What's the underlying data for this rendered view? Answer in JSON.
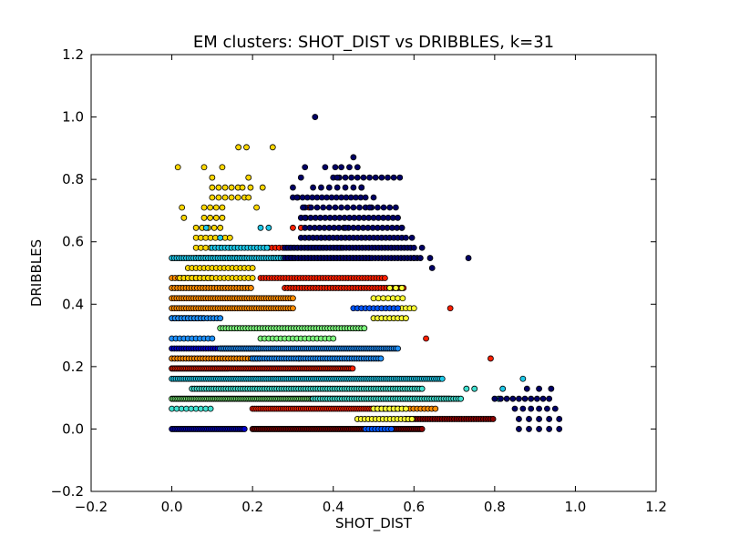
{
  "chart_data": {
    "type": "scatter",
    "title": "EM clusters: SHOT_DIST vs DRIBBLES, k=31",
    "xlabel": "SHOT_DIST",
    "ylabel": "DRIBBLES",
    "xlim": [
      -0.2,
      1.2
    ],
    "ylim": [
      -0.2,
      1.2
    ],
    "xticks": [
      "−0.2",
      "0.0",
      "0.2",
      "0.4",
      "0.6",
      "0.8",
      "1.0",
      "1.2"
    ],
    "yticks": [
      "−0.2",
      "0.0",
      "0.2",
      "0.4",
      "0.6",
      "0.8",
      "1.0",
      "1.2"
    ],
    "grid": false,
    "legend": "none",
    "marker_edge_color": "#000000",
    "background": "#ffffff",
    "dribble_levels": [
      0.0,
      0.032,
      0.065,
      0.097,
      0.129,
      0.161,
      0.194,
      0.226,
      0.258,
      0.29,
      0.323,
      0.355,
      0.387,
      0.419,
      0.452,
      0.484,
      0.516,
      0.548,
      0.581,
      0.613,
      0.645,
      0.677,
      0.71,
      0.742,
      0.774,
      0.806,
      0.839,
      0.871,
      0.903,
      1.0
    ],
    "series": [
      {
        "color": "#0000cd",
        "ranges": [
          [
            0.0,
            0.0,
            0.18,
            0.004
          ],
          [
            0.355,
            0.0,
            0.08,
            0.006
          ],
          [
            0.258,
            0.0,
            0.22,
            0.006
          ],
          [
            0.194,
            0.0,
            0.14,
            0.006
          ]
        ]
      },
      {
        "color": "#8b0000",
        "ranges": [
          [
            0.0,
            0.2,
            0.62,
            0.004
          ],
          [
            0.032,
            0.58,
            0.8,
            0.006
          ]
        ]
      },
      {
        "color": "#ff2000",
        "ranges": [
          [
            0.194,
            0.0,
            0.45,
            0.004
          ],
          [
            0.065,
            0.2,
            0.56,
            0.005
          ],
          [
            0.452,
            0.28,
            0.58,
            0.007
          ],
          [
            0.484,
            0.22,
            0.53,
            0.007
          ],
          [
            0.548,
            0.25,
            0.49,
            0.008
          ],
          [
            0.581,
            0.23,
            0.42,
            0.009
          ],
          [
            0.613,
            0.35,
            0.41,
            0.02
          ],
          [
            0.645,
            0.3,
            0.33,
            0.02
          ]
        ],
        "points": [
          [
            0.34,
            0.71
          ],
          [
            0.315,
            0.226
          ],
          [
            0.69,
            0.39
          ],
          [
            0.79,
            0.226
          ],
          [
            0.63,
            0.29
          ]
        ]
      },
      {
        "color": "#ff8c00",
        "ranges": [
          [
            0.387,
            0.0,
            0.3,
            0.006
          ],
          [
            0.419,
            0.0,
            0.3,
            0.006
          ],
          [
            0.452,
            0.0,
            0.2,
            0.007
          ],
          [
            0.484,
            0.0,
            0.1,
            0.008
          ],
          [
            0.226,
            0.0,
            0.22,
            0.007
          ],
          [
            0.065,
            0.5,
            0.66,
            0.009
          ]
        ]
      },
      {
        "color": "#ffd700",
        "ranges": [
          [
            0.484,
            0.02,
            0.2,
            0.01
          ],
          [
            0.516,
            0.04,
            0.2,
            0.01
          ],
          [
            0.548,
            0.06,
            0.18,
            0.01
          ],
          [
            0.581,
            0.06,
            0.16,
            0.012
          ],
          [
            0.613,
            0.06,
            0.15,
            0.012
          ],
          [
            0.645,
            0.06,
            0.13,
            0.015
          ],
          [
            0.677,
            0.08,
            0.13,
            0.015
          ],
          [
            0.71,
            0.08,
            0.13,
            0.015
          ],
          [
            0.742,
            0.1,
            0.18,
            0.016
          ],
          [
            0.774,
            0.1,
            0.17,
            0.016
          ]
        ],
        "points": [
          [
            0.015,
            0.839
          ],
          [
            0.08,
            0.839
          ],
          [
            0.1,
            0.806
          ],
          [
            0.125,
            0.839
          ],
          [
            0.165,
            0.903
          ],
          [
            0.185,
            0.903
          ],
          [
            0.25,
            0.903
          ],
          [
            0.19,
            0.806
          ],
          [
            0.195,
            0.774
          ],
          [
            0.025,
            0.71
          ],
          [
            0.03,
            0.677
          ],
          [
            0.21,
            0.71
          ],
          [
            0.19,
            0.742
          ],
          [
            0.175,
            0.774
          ],
          [
            0.225,
            0.774
          ]
        ]
      },
      {
        "color": "#ffff33",
        "ranges": [
          [
            0.032,
            0.46,
            0.6,
            0.009
          ],
          [
            0.065,
            0.5,
            0.58,
            0.01
          ],
          [
            0.355,
            0.5,
            0.58,
            0.01
          ],
          [
            0.387,
            0.52,
            0.6,
            0.01
          ],
          [
            0.419,
            0.5,
            0.58,
            0.012
          ],
          [
            0.452,
            0.54,
            0.57,
            0.015
          ]
        ]
      },
      {
        "color": "#7fff7f",
        "ranges": [
          [
            0.097,
            0.0,
            0.69,
            0.004
          ],
          [
            0.323,
            0.12,
            0.48,
            0.007
          ],
          [
            0.29,
            0.22,
            0.4,
            0.01
          ]
        ]
      },
      {
        "color": "#40e0d0",
        "ranges": [
          [
            0.097,
            0.35,
            0.72,
            0.006
          ],
          [
            0.129,
            0.05,
            0.62,
            0.006
          ],
          [
            0.065,
            0.0,
            0.1,
            0.012
          ]
        ],
        "points": [
          [
            0.73,
            0.129
          ],
          [
            0.75,
            0.129
          ]
        ]
      },
      {
        "color": "#1ec8e8",
        "ranges": [
          [
            0.161,
            0.0,
            0.67,
            0.005
          ],
          [
            0.548,
            0.0,
            0.3,
            0.006
          ],
          [
            0.581,
            0.1,
            0.24,
            0.008
          ]
        ],
        "points": [
          [
            0.87,
            0.161
          ],
          [
            0.82,
            0.129
          ],
          [
            0.81,
            0.097
          ],
          [
            0.24,
            0.645
          ],
          [
            0.22,
            0.645
          ],
          [
            0.085,
            0.645
          ],
          [
            0.12,
            0.613
          ]
        ]
      },
      {
        "color": "#1e90ff",
        "ranges": [
          [
            0.355,
            0.0,
            0.12,
            0.008
          ],
          [
            0.258,
            0.12,
            0.56,
            0.005
          ],
          [
            0.226,
            0.2,
            0.52,
            0.006
          ],
          [
            0.29,
            0.0,
            0.1,
            0.01
          ]
        ]
      },
      {
        "color": "#0055ff",
        "ranges": [
          [
            0.0,
            0.48,
            0.55,
            0.008
          ],
          [
            0.387,
            0.45,
            0.56,
            0.01
          ]
        ]
      },
      {
        "color": "#000066",
        "ranges": [
          [
            0.548,
            0.28,
            0.62,
            0.008
          ],
          [
            0.581,
            0.28,
            0.6,
            0.008
          ],
          [
            0.613,
            0.32,
            0.58,
            0.01
          ],
          [
            0.645,
            0.33,
            0.57,
            0.012
          ],
          [
            0.677,
            0.32,
            0.56,
            0.012
          ],
          [
            0.71,
            0.33,
            0.56,
            0.015
          ],
          [
            0.742,
            0.3,
            0.48,
            0.012
          ],
          [
            0.774,
            0.35,
            0.48,
            0.02
          ],
          [
            0.806,
            0.4,
            0.57,
            0.015
          ],
          [
            0.839,
            0.42,
            0.46,
            0.02
          ],
          [
            0.097,
            0.8,
            0.94,
            0.015
          ],
          [
            0.065,
            0.85,
            0.96,
            0.02
          ],
          [
            0.032,
            0.86,
            0.96,
            0.025
          ],
          [
            0.0,
            0.86,
            0.96,
            0.025
          ],
          [
            0.129,
            0.88,
            0.94,
            0.03
          ]
        ],
        "points": [
          [
            0.355,
            1.0
          ],
          [
            0.45,
            0.871
          ],
          [
            0.33,
            0.839
          ],
          [
            0.38,
            0.839
          ],
          [
            0.41,
            0.806
          ],
          [
            0.62,
            0.581
          ],
          [
            0.6,
            0.548
          ],
          [
            0.735,
            0.548
          ],
          [
            0.64,
            0.548
          ],
          [
            0.645,
            0.516
          ],
          [
            0.32,
            0.806
          ],
          [
            0.405,
            0.839
          ],
          [
            0.3,
            0.774
          ],
          [
            0.31,
            0.742
          ],
          [
            0.595,
            0.613
          ],
          [
            0.57,
            0.645
          ],
          [
            0.33,
            0.677
          ],
          [
            0.325,
            0.71
          ],
          [
            0.43,
            0.645
          ],
          [
            0.47,
            0.774
          ],
          [
            0.5,
            0.742
          ],
          [
            0.49,
            0.71
          ]
        ]
      }
    ]
  }
}
